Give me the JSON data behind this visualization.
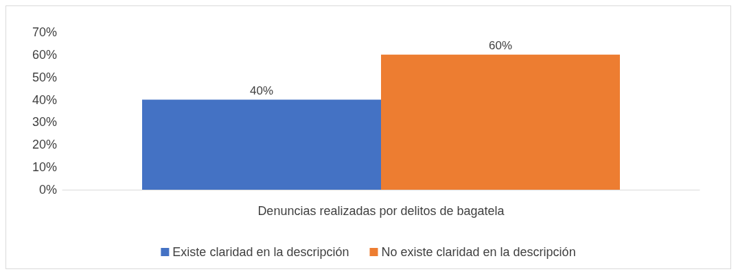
{
  "chart_data": {
    "type": "bar",
    "categories": [
      "Denuncias realizadas por delitos de bagatela"
    ],
    "series": [
      {
        "name": "Existe claridad en la descripción",
        "color": "#4472c4",
        "values": [
          40
        ],
        "value_labels": [
          "40%"
        ]
      },
      {
        "name": "No existe claridad en la descripción",
        "color": "#ed7d31",
        "values": [
          60
        ],
        "value_labels": [
          "60%"
        ]
      }
    ],
    "ylim": [
      0,
      70
    ],
    "yticks": [
      {
        "value": 0,
        "label": "0%"
      },
      {
        "value": 10,
        "label": "10%"
      },
      {
        "value": 20,
        "label": "20%"
      },
      {
        "value": 30,
        "label": "30%"
      },
      {
        "value": 40,
        "label": "40%"
      },
      {
        "value": 50,
        "label": "50%"
      },
      {
        "value": 60,
        "label": "60%"
      },
      {
        "value": 70,
        "label": "70%"
      }
    ],
    "grid": false,
    "legend": "bottom"
  }
}
